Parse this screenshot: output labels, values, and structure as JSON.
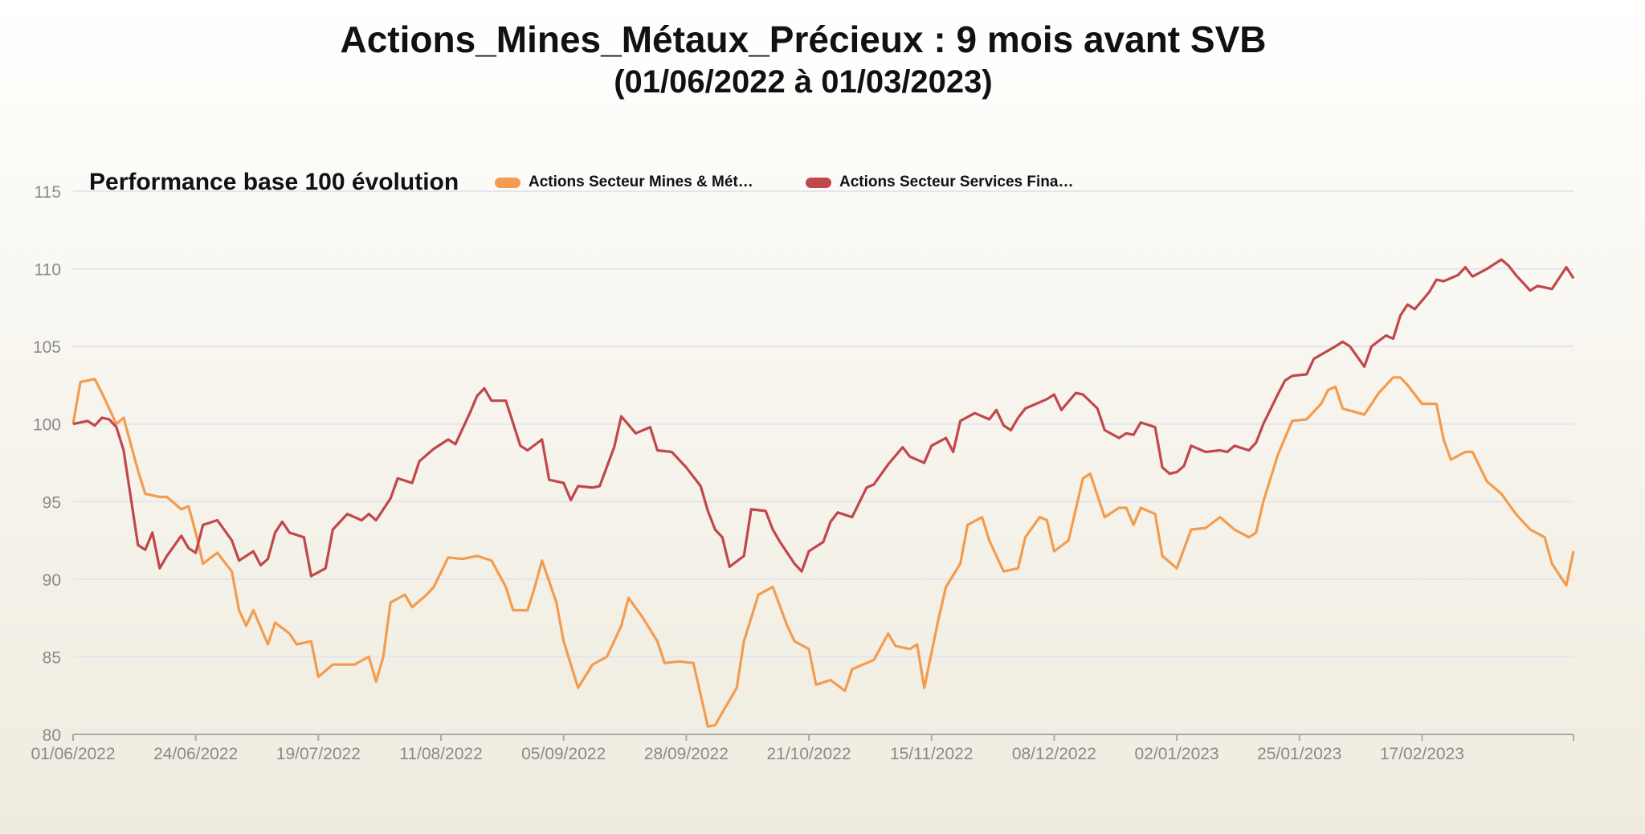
{
  "header": {
    "title": "Actions_Mines_Métaux_Précieux : 9 mois avant SVB",
    "subtitle": "(01/06/2022 à 01/03/2023)"
  },
  "chart_data": {
    "type": "line",
    "title": "Performance base 100 évolution",
    "xlabel": "",
    "ylabel": "",
    "ylim": [
      80,
      115
    ],
    "yticks": [
      80,
      85,
      90,
      95,
      100,
      105,
      110,
      115
    ],
    "x_unit": "trading session",
    "xlim": [
      0,
      208
    ],
    "xticks": [
      {
        "x": 0,
        "label": "01/06/2022"
      },
      {
        "x": 17,
        "label": "24/06/2022"
      },
      {
        "x": 34,
        "label": "19/07/2022"
      },
      {
        "x": 51,
        "label": "11/08/2022"
      },
      {
        "x": 68,
        "label": "05/09/2022"
      },
      {
        "x": 85,
        "label": "28/09/2022"
      },
      {
        "x": 102,
        "label": "21/10/2022"
      },
      {
        "x": 119,
        "label": "15/11/2022"
      },
      {
        "x": 136,
        "label": "08/12/2022"
      },
      {
        "x": 153,
        "label": "02/01/2023"
      },
      {
        "x": 170,
        "label": "25/01/2023"
      },
      {
        "x": 187,
        "label": "17/02/2023"
      }
    ],
    "grid": true,
    "legend_position": "top",
    "series": [
      {
        "name": "Actions Secteur Mines & Mét…",
        "color": "#f39c4f",
        "points": [
          [
            0,
            100
          ],
          [
            1,
            102.7
          ],
          [
            3,
            102.9
          ],
          [
            4,
            102
          ],
          [
            6,
            100
          ],
          [
            7,
            100.4
          ],
          [
            9,
            97
          ],
          [
            10,
            95.5
          ],
          [
            12,
            95.3
          ],
          [
            13,
            95.3
          ],
          [
            15,
            94.5
          ],
          [
            16,
            94.7
          ],
          [
            17,
            93
          ],
          [
            18,
            91
          ],
          [
            20,
            91.7
          ],
          [
            22,
            90.5
          ],
          [
            23,
            88
          ],
          [
            24,
            87
          ],
          [
            25,
            88
          ],
          [
            27,
            85.8
          ],
          [
            28,
            87.2
          ],
          [
            30,
            86.5
          ],
          [
            31,
            85.8
          ],
          [
            33,
            86
          ],
          [
            34,
            83.7
          ],
          [
            36,
            84.5
          ],
          [
            39,
            84.5
          ],
          [
            41,
            85
          ],
          [
            42,
            83.4
          ],
          [
            43,
            85
          ],
          [
            44,
            88.5
          ],
          [
            46,
            89
          ],
          [
            47,
            88.2
          ],
          [
            49,
            89
          ],
          [
            50,
            89.5
          ],
          [
            52,
            91.4
          ],
          [
            54,
            91.3
          ],
          [
            56,
            91.5
          ],
          [
            58,
            91.2
          ],
          [
            60,
            89.5
          ],
          [
            61,
            88
          ],
          [
            63,
            88
          ],
          [
            64,
            89.5
          ],
          [
            65,
            91.2
          ],
          [
            67,
            88.5
          ],
          [
            68,
            86
          ],
          [
            70,
            83
          ],
          [
            72,
            84.5
          ],
          [
            74,
            85
          ],
          [
            76,
            87
          ],
          [
            77,
            88.8
          ],
          [
            79,
            87.5
          ],
          [
            81,
            86
          ],
          [
            82,
            84.6
          ],
          [
            84,
            84.7
          ],
          [
            86,
            84.6
          ],
          [
            88,
            80.5
          ],
          [
            89,
            80.6
          ],
          [
            92,
            83
          ],
          [
            93,
            86
          ],
          [
            95,
            89
          ],
          [
            97,
            89.5
          ],
          [
            99,
            87
          ],
          [
            100,
            86
          ],
          [
            102,
            85.5
          ],
          [
            103,
            83.2
          ],
          [
            105,
            83.5
          ],
          [
            107,
            82.8
          ],
          [
            108,
            84.2
          ],
          [
            111,
            84.8
          ],
          [
            113,
            86.5
          ],
          [
            114,
            85.7
          ],
          [
            116,
            85.5
          ],
          [
            117,
            85.8
          ],
          [
            118,
            83
          ],
          [
            120,
            87.5
          ],
          [
            121,
            89.5
          ],
          [
            123,
            91
          ],
          [
            124,
            93.5
          ],
          [
            126,
            94
          ],
          [
            127,
            92.5
          ],
          [
            129,
            90.5
          ],
          [
            131,
            90.7
          ],
          [
            132,
            92.7
          ],
          [
            134,
            94
          ],
          [
            135,
            93.8
          ],
          [
            136,
            91.8
          ],
          [
            138,
            92.5
          ],
          [
            140,
            96.5
          ],
          [
            141,
            96.8
          ],
          [
            143,
            94
          ],
          [
            145,
            94.6
          ],
          [
            146,
            94.6
          ],
          [
            147,
            93.5
          ],
          [
            148,
            94.6
          ],
          [
            150,
            94.2
          ],
          [
            151,
            91.5
          ],
          [
            153,
            90.7
          ],
          [
            155,
            93.2
          ],
          [
            157,
            93.3
          ],
          [
            159,
            94
          ],
          [
            161,
            93.2
          ],
          [
            163,
            92.7
          ],
          [
            164,
            93
          ],
          [
            165,
            95
          ],
          [
            167,
            98
          ],
          [
            169,
            100.2
          ],
          [
            171,
            100.3
          ],
          [
            173,
            101.3
          ],
          [
            174,
            102.2
          ],
          [
            175,
            102.4
          ],
          [
            176,
            101
          ],
          [
            179,
            100.6
          ],
          [
            181,
            102
          ],
          [
            183,
            103
          ],
          [
            184,
            103
          ],
          [
            185,
            102.5
          ],
          [
            187,
            101.3
          ],
          [
            189,
            101.3
          ],
          [
            190,
            99
          ],
          [
            191,
            97.7
          ],
          [
            193,
            98.2
          ],
          [
            194,
            98.2
          ],
          [
            196,
            96.3
          ],
          [
            198,
            95.5
          ],
          [
            200,
            94.2
          ],
          [
            202,
            93.2
          ],
          [
            204,
            92.7
          ],
          [
            205,
            91
          ],
          [
            207,
            89.6
          ],
          [
            208,
            91.8
          ]
        ]
      },
      {
        "name": "Actions Secteur Services Fina…",
        "color": "#c0474a",
        "points": [
          [
            0,
            100
          ],
          [
            2,
            100.2
          ],
          [
            3,
            99.9
          ],
          [
            4,
            100.4
          ],
          [
            5,
            100.3
          ],
          [
            6,
            99.8
          ],
          [
            7,
            98.3
          ],
          [
            9,
            92.2
          ],
          [
            10,
            91.9
          ],
          [
            11,
            93
          ],
          [
            12,
            90.7
          ],
          [
            13,
            91.5
          ],
          [
            15,
            92.8
          ],
          [
            16,
            92
          ],
          [
            17,
            91.7
          ],
          [
            18,
            93.5
          ],
          [
            20,
            93.8
          ],
          [
            22,
            92.5
          ],
          [
            23,
            91.2
          ],
          [
            25,
            91.8
          ],
          [
            26,
            90.9
          ],
          [
            27,
            91.3
          ],
          [
            28,
            93
          ],
          [
            29,
            93.7
          ],
          [
            30,
            93
          ],
          [
            32,
            92.7
          ],
          [
            33,
            90.2
          ],
          [
            35,
            90.7
          ],
          [
            36,
            93.2
          ],
          [
            38,
            94.2
          ],
          [
            40,
            93.8
          ],
          [
            41,
            94.2
          ],
          [
            42,
            93.8
          ],
          [
            44,
            95.2
          ],
          [
            45,
            96.5
          ],
          [
            47,
            96.2
          ],
          [
            48,
            97.6
          ],
          [
            50,
            98.4
          ],
          [
            52,
            99
          ],
          [
            53,
            98.7
          ],
          [
            55,
            100.7
          ],
          [
            56,
            101.8
          ],
          [
            57,
            102.3
          ],
          [
            58,
            101.5
          ],
          [
            60,
            101.5
          ],
          [
            62,
            98.6
          ],
          [
            63,
            98.3
          ],
          [
            65,
            99
          ],
          [
            66,
            96.4
          ],
          [
            68,
            96.2
          ],
          [
            69,
            95.1
          ],
          [
            70,
            96
          ],
          [
            72,
            95.9
          ],
          [
            73,
            96
          ],
          [
            75,
            98.5
          ],
          [
            76,
            100.5
          ],
          [
            78,
            99.4
          ],
          [
            80,
            99.8
          ],
          [
            81,
            98.3
          ],
          [
            83,
            98.2
          ],
          [
            85,
            97.2
          ],
          [
            87,
            96
          ],
          [
            88,
            94.4
          ],
          [
            89,
            93.2
          ],
          [
            90,
            92.7
          ],
          [
            91,
            90.8
          ],
          [
            93,
            91.5
          ],
          [
            94,
            94.5
          ],
          [
            96,
            94.4
          ],
          [
            97,
            93.2
          ],
          [
            98,
            92.4
          ],
          [
            100,
            91
          ],
          [
            101,
            90.5
          ],
          [
            102,
            91.8
          ],
          [
            104,
            92.4
          ],
          [
            105,
            93.7
          ],
          [
            106,
            94.3
          ],
          [
            108,
            94
          ],
          [
            110,
            95.9
          ],
          [
            111,
            96.1
          ],
          [
            113,
            97.4
          ],
          [
            115,
            98.5
          ],
          [
            116,
            97.9
          ],
          [
            118,
            97.5
          ],
          [
            119,
            98.6
          ],
          [
            121,
            99.1
          ],
          [
            122,
            98.2
          ],
          [
            123,
            100.2
          ],
          [
            125,
            100.7
          ],
          [
            127,
            100.3
          ],
          [
            128,
            100.9
          ],
          [
            129,
            99.9
          ],
          [
            130,
            99.6
          ],
          [
            131,
            100.4
          ],
          [
            132,
            101
          ],
          [
            135,
            101.6
          ],
          [
            136,
            101.9
          ],
          [
            137,
            100.9
          ],
          [
            139,
            102
          ],
          [
            140,
            101.9
          ],
          [
            142,
            101
          ],
          [
            143,
            99.6
          ],
          [
            145,
            99.1
          ],
          [
            146,
            99.4
          ],
          [
            147,
            99.3
          ],
          [
            148,
            100.1
          ],
          [
            150,
            99.8
          ],
          [
            151,
            97.2
          ],
          [
            152,
            96.8
          ],
          [
            153,
            96.9
          ],
          [
            154,
            97.3
          ],
          [
            155,
            98.6
          ],
          [
            157,
            98.2
          ],
          [
            159,
            98.3
          ],
          [
            160,
            98.2
          ],
          [
            161,
            98.6
          ],
          [
            163,
            98.3
          ],
          [
            164,
            98.8
          ],
          [
            165,
            100
          ],
          [
            167,
            101.9
          ],
          [
            168,
            102.8
          ],
          [
            169,
            103.1
          ],
          [
            171,
            103.2
          ],
          [
            172,
            104.2
          ],
          [
            175,
            105
          ],
          [
            176,
            105.3
          ],
          [
            177,
            105
          ],
          [
            179,
            103.7
          ],
          [
            180,
            105
          ],
          [
            182,
            105.7
          ],
          [
            183,
            105.5
          ],
          [
            184,
            107
          ],
          [
            185,
            107.7
          ],
          [
            186,
            107.4
          ],
          [
            188,
            108.5
          ],
          [
            189,
            109.3
          ],
          [
            190,
            109.2
          ],
          [
            192,
            109.6
          ],
          [
            193,
            110.1
          ],
          [
            194,
            109.5
          ],
          [
            196,
            110
          ],
          [
            198,
            110.6
          ],
          [
            199,
            110.2
          ],
          [
            200,
            109.6
          ],
          [
            202,
            108.6
          ],
          [
            203,
            108.9
          ],
          [
            205,
            108.7
          ],
          [
            207,
            110.1
          ],
          [
            208,
            109.4
          ]
        ]
      }
    ]
  }
}
